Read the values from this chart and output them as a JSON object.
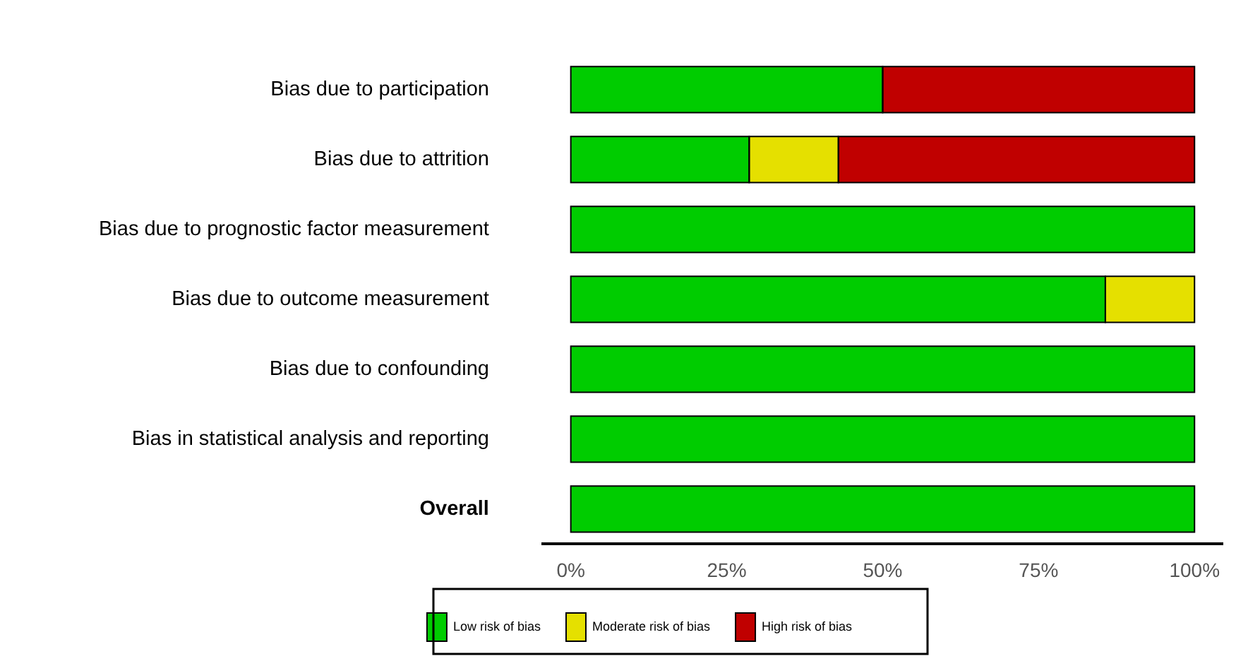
{
  "chart_data": {
    "type": "bar",
    "orientation": "horizontal",
    "stacked": true,
    "categories": [
      "Bias due to participation",
      "Bias due to attrition",
      "Bias due to prognostic factor measurement",
      "Bias due to outcome measurement",
      "Bias due to confounding",
      "Bias in statistical analysis and reporting",
      "Overall"
    ],
    "series": [
      {
        "name": "Low risk of bias",
        "color": "#00cc00",
        "values": [
          50,
          28.6,
          100,
          85.7,
          100,
          100,
          100
        ]
      },
      {
        "name": "Moderate risk of bias",
        "color": "#e5e000",
        "values": [
          0,
          14.3,
          0,
          14.3,
          0,
          0,
          0
        ]
      },
      {
        "name": "High risk of bias",
        "color": "#c00000",
        "values": [
          50,
          57.1,
          0,
          0,
          0,
          0,
          0
        ]
      }
    ],
    "xlim": [
      -4.5,
      104.5
    ],
    "xticks": [
      {
        "value": 0,
        "label": "0%"
      },
      {
        "value": 25,
        "label": "25%"
      },
      {
        "value": 50,
        "label": "50%"
      },
      {
        "value": 75,
        "label": "75%"
      },
      {
        "value": 100,
        "label": "100%"
      }
    ],
    "grid": false,
    "legend": "bottom"
  }
}
